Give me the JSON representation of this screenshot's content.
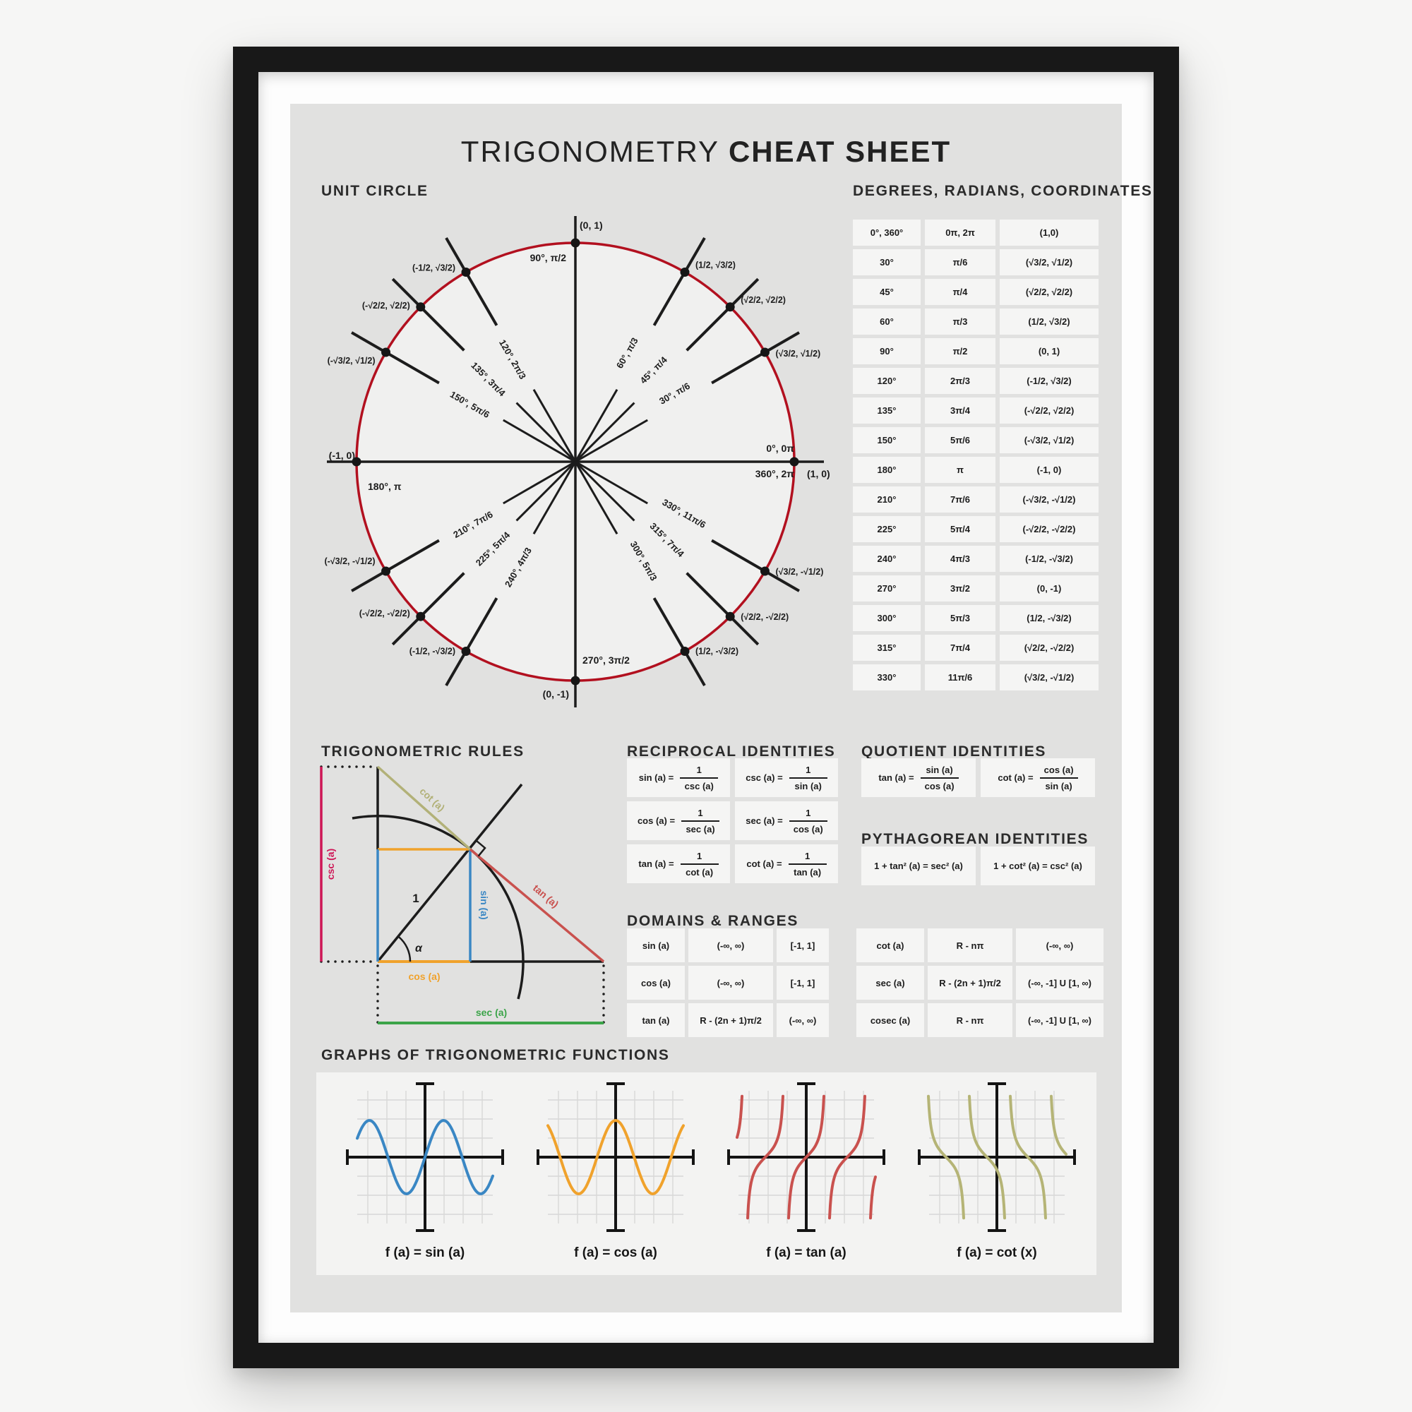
{
  "title": {
    "light": "TRIGONOMETRY",
    "bold": "CHEAT SHEET"
  },
  "colors": {
    "circle_red": "#b2101f",
    "ink": "#1c1c1c",
    "csc": "#ce1656",
    "cot": "#b2b178",
    "tan": "#c9514e",
    "sin": "#3a87c4",
    "cos": "#f0a22c",
    "sec": "#3ba449"
  },
  "unit_circle": {
    "heading": "UNIT CIRCLE",
    "axis_points": [
      {
        "deg": 0,
        "angle_labels": [
          "0°, 0π",
          "360°, 2π"
        ],
        "coord": "(1, 0)"
      },
      {
        "deg": 90,
        "angle_labels": [
          "90°, π/2"
        ],
        "coord": "(0, 1)"
      },
      {
        "deg": 180,
        "angle_labels": [
          "180°, π"
        ],
        "coord": "(-1, 0)"
      },
      {
        "deg": 270,
        "angle_labels": [
          "270°, 3π/2"
        ],
        "coord": "(0, -1)"
      }
    ],
    "spoke_points": [
      {
        "deg": 30,
        "label": "30°, π/6",
        "coord": "(√3/2, √1/2)"
      },
      {
        "deg": 45,
        "label": "45°, π/4",
        "coord": "(√2/2, √2/2)"
      },
      {
        "deg": 60,
        "label": "60°, π/3",
        "coord": "(1/2, √3/2)"
      },
      {
        "deg": 120,
        "label": "120°, 2π/3",
        "coord": "(-1/2, √3/2)"
      },
      {
        "deg": 135,
        "label": "135°, 3π/4",
        "coord": "(-√2/2, √2/2)"
      },
      {
        "deg": 150,
        "label": "150°, 5π/6",
        "coord": "(-√3/2, √1/2)"
      },
      {
        "deg": 210,
        "label": "210°, 7π/6",
        "coord": "(-√3/2, -√1/2)"
      },
      {
        "deg": 225,
        "label": "225°, 5π/4",
        "coord": "(-√2/2, -√2/2)"
      },
      {
        "deg": 240,
        "label": "240°, 4π/3",
        "coord": "(-1/2, -√3/2)"
      },
      {
        "deg": 300,
        "label": "300°, 5π/3",
        "coord": "(1/2, -√3/2)"
      },
      {
        "deg": 315,
        "label": "315°, 7π/4",
        "coord": "(√2/2, -√2/2)"
      },
      {
        "deg": 330,
        "label": "330°, 11π/6",
        "coord": "(√3/2, -√1/2)"
      }
    ]
  },
  "drc_table": {
    "heading": "DEGREES, RADIANS, COORDINATES",
    "rows": [
      [
        "0°, 360°",
        "0π, 2π",
        "(1,0)"
      ],
      [
        "30°",
        "π/6",
        "(√3/2, √1/2)"
      ],
      [
        "45°",
        "π/4",
        "(√2/2, √2/2)"
      ],
      [
        "60°",
        "π/3",
        "(1/2, √3/2)"
      ],
      [
        "90°",
        "π/2",
        "(0, 1)"
      ],
      [
        "120°",
        "2π/3",
        "(-1/2, √3/2)"
      ],
      [
        "135°",
        "3π/4",
        "(-√2/2, √2/2)"
      ],
      [
        "150°",
        "5π/6",
        "(-√3/2, √1/2)"
      ],
      [
        "180°",
        "π",
        "(-1, 0)"
      ],
      [
        "210°",
        "7π/6",
        "(-√3/2, -√1/2)"
      ],
      [
        "225°",
        "5π/4",
        "(-√2/2, -√2/2)"
      ],
      [
        "240°",
        "4π/3",
        "(-1/2, -√3/2)"
      ],
      [
        "270°",
        "3π/2",
        "(0, -1)"
      ],
      [
        "300°",
        "5π/3",
        "(1/2, -√3/2)"
      ],
      [
        "315°",
        "7π/4",
        "(√2/2, -√2/2)"
      ],
      [
        "330°",
        "11π/6",
        "(√3/2, -√1/2)"
      ]
    ]
  },
  "trig_rules": {
    "heading": "TRIGONOMETRIC RULES",
    "labels": {
      "csc": "csc (a)",
      "cot": "cot (a)",
      "tan": "tan (a)",
      "sin": "sin (a)",
      "cos": "cos (a)",
      "sec": "sec (a)",
      "hyp": "1",
      "angle": "α"
    }
  },
  "reciprocal": {
    "heading": "RECIPROCAL IDENTITIES",
    "items": [
      {
        "lhs": "sin (a) =",
        "num": "1",
        "den": "csc (a)"
      },
      {
        "lhs": "csc (a) =",
        "num": "1",
        "den": "sin (a)"
      },
      {
        "lhs": "cos (a) =",
        "num": "1",
        "den": "sec (a)"
      },
      {
        "lhs": "sec (a) =",
        "num": "1",
        "den": "cos (a)"
      },
      {
        "lhs": "tan (a) =",
        "num": "1",
        "den": "cot (a)"
      },
      {
        "lhs": "cot (a) =",
        "num": "1",
        "den": "tan (a)"
      }
    ]
  },
  "quotient": {
    "heading": "QUOTIENT IDENTITIES",
    "items": [
      {
        "lhs": "tan (a) =",
        "num": "sin (a)",
        "den": "cos (a)"
      },
      {
        "lhs": "cot (a) =",
        "num": "cos (a)",
        "den": "sin (a)"
      }
    ]
  },
  "pythagorean": {
    "heading": "PYTHAGOREAN IDENTITIES",
    "items": [
      "1 + tan² (a) = sec² (a)",
      "1 + cot² (a) = csc² (a)"
    ]
  },
  "domains_ranges": {
    "heading": "DOMAINS & RANGES",
    "left": [
      [
        "sin (a)",
        "(-∞, ∞)",
        "[-1, 1]"
      ],
      [
        "cos (a)",
        "(-∞, ∞)",
        "[-1, 1]"
      ],
      [
        "tan (a)",
        "R - (2n + 1)π/2",
        "(-∞, ∞)"
      ]
    ],
    "right": [
      [
        "cot (a)",
        "R - nπ",
        "(-∞, ∞)"
      ],
      [
        "sec (a)",
        "R - (2n + 1)π/2",
        "(-∞, -1] U [1, ∞)"
      ],
      [
        "cosec (a)",
        "R - nπ",
        "(-∞, -1] U [1, ∞)"
      ]
    ]
  },
  "graphs": {
    "heading": "GRAPHS OF TRIGONOMETRIC FUNCTIONS",
    "items": [
      {
        "fn": "sin",
        "label": "f (a) = sin (a)",
        "color": "#3a87c4"
      },
      {
        "fn": "cos",
        "label": "f (a) = cos (a)",
        "color": "#f0a22c"
      },
      {
        "fn": "tan",
        "label": "f (a) = tan (a)",
        "color": "#c9514e"
      },
      {
        "fn": "cot",
        "label": "f (a) = cot (x)",
        "color": "#b5b476"
      }
    ]
  }
}
